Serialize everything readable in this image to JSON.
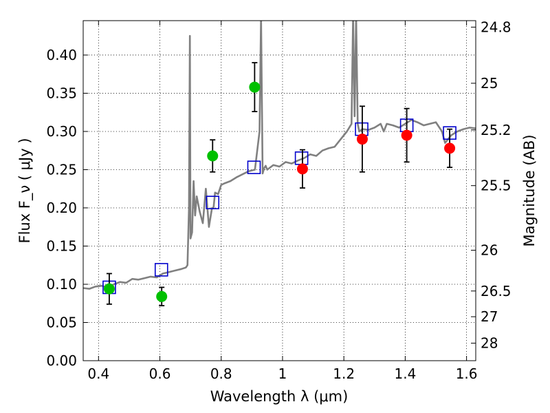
{
  "chart_data": {
    "type": "scatter",
    "title": "",
    "xlabel": "Wavelength  λ (μm)",
    "ylabel": "Flux  F_ν  ( μJy )",
    "y2label": "Magnitude (AB)",
    "xlim": [
      0.35,
      1.63
    ],
    "ylim": [
      0.0,
      0.445
    ],
    "grid": true,
    "legend": "none",
    "x_ticks": [
      0.4,
      0.6,
      0.8,
      1.0,
      1.2,
      1.4,
      1.6
    ],
    "x_tick_labels": [
      "0.4",
      "0.6",
      "0.8",
      "1",
      "1.2",
      "1.4",
      "1.6"
    ],
    "y_ticks": [
      0.0,
      0.05,
      0.1,
      0.15,
      0.2,
      0.25,
      0.3,
      0.35,
      0.4
    ],
    "y_tick_labels": [
      "0.00",
      "0.05",
      "0.10",
      "0.15",
      "0.20",
      "0.25",
      "0.30",
      "0.35",
      "0.40"
    ],
    "y2_ticks": [
      {
        "label": "24.8",
        "mag": 24.8
      },
      {
        "label": "25",
        "mag": 25.0
      },
      {
        "label": "25.2",
        "mag": 25.2
      },
      {
        "label": "25.5",
        "mag": 25.5
      },
      {
        "label": "26",
        "mag": 26.0
      },
      {
        "label": "26.5",
        "mag": 26.5
      },
      {
        "label": "27",
        "mag": 27.0
      },
      {
        "label": "28",
        "mag": 28.0
      }
    ],
    "series": [
      {
        "kind": "line",
        "color": "#808080",
        "x": [
          0.35,
          0.37,
          0.39,
          0.41,
          0.43,
          0.45,
          0.47,
          0.49,
          0.51,
          0.53,
          0.55,
          0.57,
          0.59,
          0.61,
          0.63,
          0.65,
          0.67,
          0.685,
          0.69,
          0.695,
          0.698,
          0.7,
          0.705,
          0.71,
          0.715,
          0.72,
          0.73,
          0.74,
          0.75,
          0.76,
          0.77,
          0.775,
          0.78,
          0.79,
          0.8,
          0.81,
          0.83,
          0.85,
          0.87,
          0.89,
          0.91,
          0.925,
          0.93,
          0.935,
          0.94,
          0.945,
          0.95,
          0.97,
          0.99,
          1.01,
          1.03,
          1.05,
          1.07,
          1.09,
          1.11,
          1.13,
          1.15,
          1.17,
          1.19,
          1.21,
          1.225,
          1.23,
          1.235,
          1.24,
          1.245,
          1.25,
          1.26,
          1.28,
          1.3,
          1.32,
          1.33,
          1.34,
          1.36,
          1.38,
          1.4,
          1.42,
          1.44,
          1.46,
          1.48,
          1.5,
          1.52,
          1.53,
          1.55,
          1.57,
          1.59,
          1.61,
          1.63
        ],
        "y": [
          0.095,
          0.094,
          0.097,
          0.098,
          0.096,
          0.1,
          0.103,
          0.102,
          0.107,
          0.106,
          0.108,
          0.11,
          0.109,
          0.114,
          0.116,
          0.118,
          0.12,
          0.122,
          0.125,
          0.2,
          0.425,
          0.16,
          0.168,
          0.235,
          0.19,
          0.215,
          0.195,
          0.18,
          0.225,
          0.175,
          0.2,
          0.2,
          0.22,
          0.218,
          0.23,
          0.232,
          0.235,
          0.24,
          0.244,
          0.248,
          0.25,
          0.3,
          0.45,
          0.245,
          0.252,
          0.255,
          0.25,
          0.256,
          0.254,
          0.26,
          0.258,
          0.262,
          0.265,
          0.27,
          0.268,
          0.275,
          0.278,
          0.28,
          0.29,
          0.3,
          0.31,
          0.45,
          0.32,
          0.45,
          0.31,
          0.3,
          0.303,
          0.302,
          0.305,
          0.31,
          0.3,
          0.31,
          0.308,
          0.305,
          0.31,
          0.315,
          0.312,
          0.308,
          0.31,
          0.312,
          0.3,
          0.285,
          0.295,
          0.3,
          0.303,
          0.305,
          0.304
        ]
      },
      {
        "kind": "points",
        "marker": "open-square",
        "color": "#0000cc",
        "x": [
          0.435,
          0.605,
          0.772,
          0.907,
          1.062,
          1.258,
          1.405,
          1.545
        ],
        "y": [
          0.096,
          0.119,
          0.207,
          0.253,
          0.265,
          0.303,
          0.308,
          0.298
        ]
      },
      {
        "kind": "points",
        "marker": "filled-circle",
        "color": "#00c000",
        "x": [
          0.435,
          0.606,
          0.772,
          0.909
        ],
        "y": [
          0.094,
          0.084,
          0.268,
          0.358
        ],
        "err": [
          0.02,
          0.012,
          0.021,
          0.032
        ]
      },
      {
        "kind": "points",
        "marker": "filled-circle",
        "color": "#ff0000",
        "x": [
          1.065,
          1.26,
          1.405,
          1.545
        ],
        "y": [
          0.251,
          0.29,
          0.295,
          0.278
        ],
        "err": [
          0.025,
          0.043,
          0.035,
          0.025
        ]
      }
    ]
  }
}
